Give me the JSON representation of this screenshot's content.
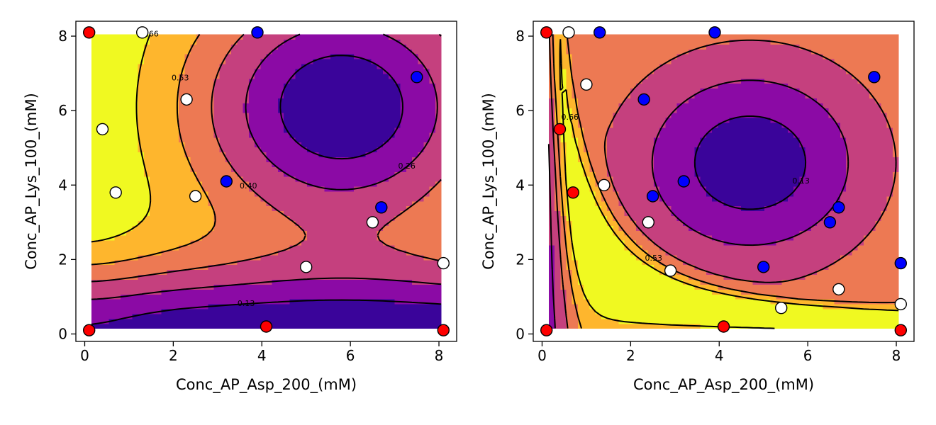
{
  "chart_data": [
    {
      "type": "contour",
      "xlabel": "Conc_AP_Asp_200_(mM)",
      "ylabel": "Conc_AP_Lys_100_(mM)",
      "xlim": [
        -0.2,
        8.4
      ],
      "ylim": [
        -0.2,
        8.4
      ],
      "xticks": [
        "0",
        "2",
        "4",
        "6",
        "8"
      ],
      "yticks": [
        "0",
        "2",
        "4",
        "6",
        "8"
      ],
      "contour_levels": [
        "0.13",
        "0.26",
        "0.40",
        "0.53",
        "0.66"
      ],
      "colormap": [
        "#3a049a",
        "#8b0aa5",
        "#c5407e",
        "#ed7953",
        "#feb62d",
        "#f0f921"
      ],
      "points": [
        {
          "x": 0.1,
          "y": 8.1,
          "color": "#ff0000"
        },
        {
          "x": 1.3,
          "y": 8.1,
          "color": "#ffffff"
        },
        {
          "x": 3.9,
          "y": 8.1,
          "color": "#0000ff"
        },
        {
          "x": 7.5,
          "y": 6.9,
          "color": "#0000ff"
        },
        {
          "x": 2.3,
          "y": 6.3,
          "color": "#ffffff"
        },
        {
          "x": 0.4,
          "y": 5.5,
          "color": "#ffffff"
        },
        {
          "x": 3.2,
          "y": 4.1,
          "color": "#0000ff"
        },
        {
          "x": 0.7,
          "y": 3.8,
          "color": "#ffffff"
        },
        {
          "x": 2.5,
          "y": 3.7,
          "color": "#ffffff"
        },
        {
          "x": 6.7,
          "y": 3.4,
          "color": "#0000ff"
        },
        {
          "x": 6.5,
          "y": 3.0,
          "color": "#ffffff"
        },
        {
          "x": 5.0,
          "y": 1.8,
          "color": "#ffffff"
        },
        {
          "x": 8.1,
          "y": 1.9,
          "color": "#ffffff"
        },
        {
          "x": 0.1,
          "y": 0.1,
          "color": "#ff0000"
        },
        {
          "x": 4.1,
          "y": 0.2,
          "color": "#ff0000"
        },
        {
          "x": 8.1,
          "y": 0.1,
          "color": "#ff0000"
        }
      ]
    },
    {
      "type": "contour",
      "xlabel": "Conc_AP_Asp_200_(mM)",
      "ylabel": "Conc_AP_Lys_100_(mM)",
      "xlim": [
        -0.2,
        8.4
      ],
      "ylim": [
        -0.2,
        8.4
      ],
      "xticks": [
        "0",
        "2",
        "4",
        "6",
        "8"
      ],
      "yticks": [
        "0",
        "2",
        "4",
        "6",
        "8"
      ],
      "contour_levels": [
        "0.13",
        "0.26",
        "0.40",
        "0.53",
        "0.66"
      ],
      "colormap": [
        "#3a049a",
        "#8b0aa5",
        "#c5407e",
        "#ed7953",
        "#feb62d",
        "#f0f921"
      ],
      "points": [
        {
          "x": 0.1,
          "y": 8.1,
          "color": "#ff0000"
        },
        {
          "x": 0.6,
          "y": 8.1,
          "color": "#ffffff"
        },
        {
          "x": 1.3,
          "y": 8.1,
          "color": "#0000ff"
        },
        {
          "x": 3.9,
          "y": 8.1,
          "color": "#0000ff"
        },
        {
          "x": 7.5,
          "y": 6.9,
          "color": "#0000ff"
        },
        {
          "x": 1.0,
          "y": 6.7,
          "color": "#ffffff"
        },
        {
          "x": 2.3,
          "y": 6.3,
          "color": "#0000ff"
        },
        {
          "x": 0.4,
          "y": 5.5,
          "color": "#ff0000"
        },
        {
          "x": 3.2,
          "y": 4.1,
          "color": "#0000ff"
        },
        {
          "x": 1.4,
          "y": 4.0,
          "color": "#ffffff"
        },
        {
          "x": 0.7,
          "y": 3.8,
          "color": "#ff0000"
        },
        {
          "x": 2.5,
          "y": 3.7,
          "color": "#0000ff"
        },
        {
          "x": 6.7,
          "y": 3.4,
          "color": "#0000ff"
        },
        {
          "x": 2.4,
          "y": 3.0,
          "color": "#ffffff"
        },
        {
          "x": 6.5,
          "y": 3.0,
          "color": "#0000ff"
        },
        {
          "x": 2.9,
          "y": 1.7,
          "color": "#ffffff"
        },
        {
          "x": 5.0,
          "y": 1.8,
          "color": "#0000ff"
        },
        {
          "x": 8.1,
          "y": 1.9,
          "color": "#0000ff"
        },
        {
          "x": 6.7,
          "y": 1.2,
          "color": "#ffffff"
        },
        {
          "x": 5.4,
          "y": 0.7,
          "color": "#ffffff"
        },
        {
          "x": 8.1,
          "y": 0.8,
          "color": "#ffffff"
        },
        {
          "x": 0.1,
          "y": 0.1,
          "color": "#ff0000"
        },
        {
          "x": 4.1,
          "y": 0.2,
          "color": "#ff0000"
        },
        {
          "x": 8.1,
          "y": 0.1,
          "color": "#ff0000"
        }
      ]
    }
  ]
}
